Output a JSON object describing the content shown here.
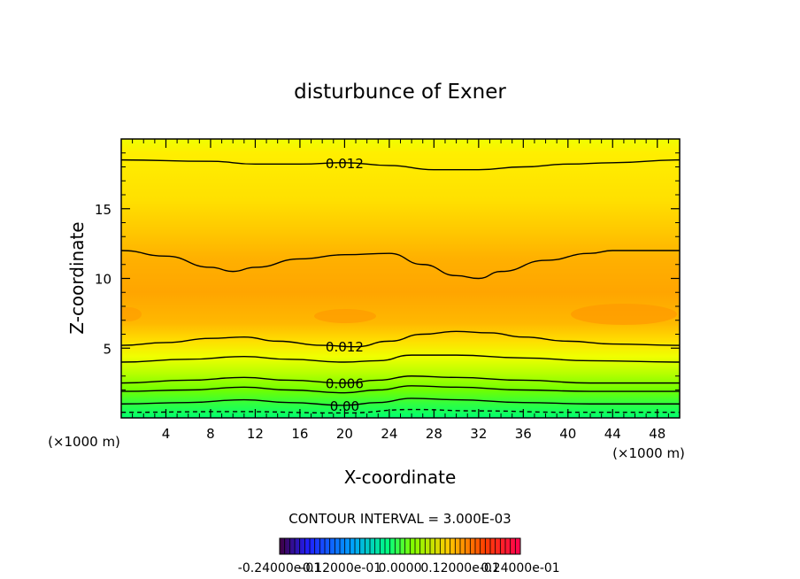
{
  "chart_data": {
    "type": "contour",
    "title": "disturbunce of Exner",
    "xlabel": "X-coordinate",
    "ylabel": "Z-coordinate",
    "x_unit": "(×1000 m)",
    "z_unit": "(×1000 m)",
    "xlim": [
      0,
      50
    ],
    "ylim": [
      0,
      20
    ],
    "x_ticks": [
      4,
      8,
      12,
      16,
      20,
      24,
      28,
      32,
      36,
      40,
      44,
      48
    ],
    "y_ticks": [
      5,
      10,
      15
    ],
    "contour_interval_text": "CONTOUR INTERVAL = 3.000E-03",
    "contour_labels": [
      "0.012",
      "0.012",
      "0.006",
      "0.00"
    ],
    "colorbar_labels": [
      "-0.24000e-01",
      "-0.12000e-01",
      "0.0000",
      "0.12000e-01",
      "0.24000e-01"
    ],
    "colorbar_range": [
      -0.024,
      0.024
    ],
    "contour_lines": [
      {
        "level": 0.012,
        "label": "0.012",
        "points": [
          [
            0,
            18.5
          ],
          [
            8,
            18.4
          ],
          [
            12,
            18.2
          ],
          [
            16,
            18.2
          ],
          [
            20,
            18.3
          ],
          [
            24,
            18.1
          ],
          [
            28,
            17.8
          ],
          [
            32,
            17.8
          ],
          [
            36,
            18.0
          ],
          [
            40,
            18.2
          ],
          [
            44,
            18.3
          ],
          [
            50,
            18.5
          ]
        ]
      },
      {
        "level": 0.012,
        "label": "",
        "points": [
          [
            0,
            12.0
          ],
          [
            4,
            11.6
          ],
          [
            8,
            10.8
          ],
          [
            10,
            10.5
          ],
          [
            12,
            10.8
          ],
          [
            16,
            11.4
          ],
          [
            20,
            11.7
          ],
          [
            24,
            11.8
          ],
          [
            27,
            11.0
          ],
          [
            30,
            10.2
          ],
          [
            32,
            10.0
          ],
          [
            34,
            10.5
          ],
          [
            38,
            11.3
          ],
          [
            42,
            11.8
          ],
          [
            44,
            12.0
          ],
          [
            50,
            12.0
          ]
        ]
      },
      {
        "level": 0.012,
        "label": "0.012",
        "points": [
          [
            0,
            5.2
          ],
          [
            4,
            5.4
          ],
          [
            8,
            5.7
          ],
          [
            11,
            5.8
          ],
          [
            14,
            5.5
          ],
          [
            18,
            5.2
          ],
          [
            21,
            5.1
          ],
          [
            24,
            5.5
          ],
          [
            27,
            6.0
          ],
          [
            30,
            6.2
          ],
          [
            33,
            6.1
          ],
          [
            36,
            5.8
          ],
          [
            40,
            5.5
          ],
          [
            44,
            5.3
          ],
          [
            50,
            5.2
          ]
        ]
      },
      {
        "level": 0.009,
        "label": "",
        "points": [
          [
            0,
            4.0
          ],
          [
            6,
            4.2
          ],
          [
            11,
            4.4
          ],
          [
            15,
            4.2
          ],
          [
            20,
            4.0
          ],
          [
            23,
            4.1
          ],
          [
            26,
            4.5
          ],
          [
            30,
            4.5
          ],
          [
            36,
            4.3
          ],
          [
            42,
            4.1
          ],
          [
            50,
            4.0
          ]
        ]
      },
      {
        "level": 0.006,
        "label": "0.006",
        "points": [
          [
            0,
            2.5
          ],
          [
            6,
            2.7
          ],
          [
            11,
            2.9
          ],
          [
            15,
            2.7
          ],
          [
            20,
            2.5
          ],
          [
            23,
            2.7
          ],
          [
            26,
            3.0
          ],
          [
            30,
            2.9
          ],
          [
            36,
            2.7
          ],
          [
            42,
            2.5
          ],
          [
            50,
            2.5
          ]
        ]
      },
      {
        "level": 0.003,
        "label": "",
        "points": [
          [
            0,
            1.9
          ],
          [
            6,
            2.0
          ],
          [
            11,
            2.2
          ],
          [
            15,
            2.0
          ],
          [
            20,
            1.8
          ],
          [
            23,
            2.0
          ],
          [
            26,
            2.3
          ],
          [
            30,
            2.2
          ],
          [
            36,
            2.0
          ],
          [
            42,
            1.9
          ],
          [
            50,
            1.9
          ]
        ]
      },
      {
        "level": 0.0,
        "label": "0.00",
        "points": [
          [
            0,
            1.0
          ],
          [
            6,
            1.1
          ],
          [
            11,
            1.3
          ],
          [
            15,
            1.1
          ],
          [
            20,
            0.9
          ],
          [
            23,
            1.1
          ],
          [
            26,
            1.4
          ],
          [
            30,
            1.3
          ],
          [
            36,
            1.1
          ],
          [
            42,
            1.0
          ],
          [
            50,
            1.0
          ]
        ]
      },
      {
        "level": -0.003,
        "label": "",
        "dashed": true,
        "points": [
          [
            0,
            0.4
          ],
          [
            10,
            0.45
          ],
          [
            20,
            0.35
          ],
          [
            26,
            0.6
          ],
          [
            32,
            0.5
          ],
          [
            40,
            0.4
          ],
          [
            50,
            0.4
          ]
        ]
      }
    ]
  }
}
